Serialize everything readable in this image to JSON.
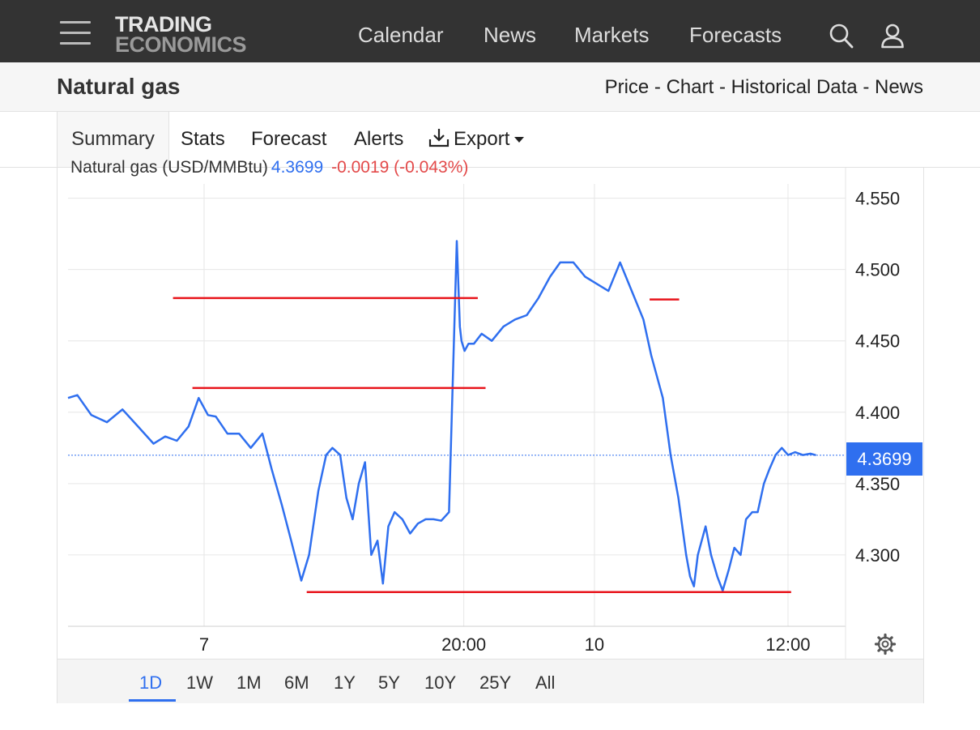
{
  "header": {
    "logo_line1": "TRADING",
    "logo_line2": "ECONOMICS",
    "nav": [
      "Calendar",
      "News",
      "Markets",
      "Forecasts"
    ],
    "icons": [
      "menu-icon",
      "search-icon",
      "user-icon"
    ]
  },
  "title_bar": {
    "title": "Natural gas",
    "links": [
      "Price",
      "Chart",
      "Historical Data",
      "News"
    ],
    "separator": " - "
  },
  "tabs": {
    "items": [
      "Summary",
      "Stats",
      "Forecast",
      "Alerts",
      "Export"
    ],
    "active": "Summary",
    "export_icon": "download-icon"
  },
  "legend": {
    "name": "Natural gas (USD/MMBtu)",
    "price": "4.3699",
    "change": "-0.0019 (-0.043%)"
  },
  "colors": {
    "accent": "#2f6fef",
    "negative": "#e34a4a",
    "trendline": "#e8141b",
    "topbar": "#333333"
  },
  "ranges": {
    "items": [
      "1D",
      "1W",
      "1M",
      "6M",
      "1Y",
      "5Y",
      "10Y",
      "25Y",
      "All"
    ],
    "active": "1D"
  },
  "chart_data": {
    "type": "line",
    "ylim": [
      4.25,
      4.56
    ],
    "y_ticks": [
      4.3,
      4.35,
      4.4,
      4.45,
      4.5,
      4.55
    ],
    "y_tick_labels": [
      "4.300",
      "4.350",
      "4.400",
      "4.450",
      "4.500",
      "4.550"
    ],
    "x_tick_labels": [
      "7",
      "20:00",
      "10",
      "12:00"
    ],
    "x_tick_positions": [
      0.175,
      0.509,
      0.677,
      0.926
    ],
    "grid": true,
    "last_value": 4.3699,
    "last_value_label": "4.3699",
    "series": [
      {
        "color": "#2f6fef",
        "x": [
          0.0,
          0.012,
          0.03,
          0.05,
          0.07,
          0.09,
          0.11,
          0.125,
          0.14,
          0.155,
          0.168,
          0.18,
          0.19,
          0.205,
          0.22,
          0.235,
          0.25,
          0.262,
          0.275,
          0.287,
          0.3,
          0.31,
          0.322,
          0.332,
          0.34,
          0.35,
          0.358,
          0.366,
          0.374,
          0.382,
          0.39,
          0.398,
          0.405,
          0.412,
          0.42,
          0.43,
          0.44,
          0.45,
          0.46,
          0.47,
          0.48,
          0.49,
          0.5,
          0.504,
          0.506,
          0.51,
          0.515,
          0.522,
          0.532,
          0.545,
          0.56,
          0.575,
          0.59,
          0.605,
          0.62,
          0.633,
          0.65,
          0.665,
          0.68,
          0.695,
          0.71,
          0.725,
          0.74,
          0.75,
          0.765,
          0.775,
          0.785,
          0.795,
          0.8,
          0.805,
          0.81,
          0.82,
          0.827,
          0.835,
          0.842,
          0.85,
          0.857,
          0.865,
          0.872,
          0.88,
          0.887,
          0.895,
          0.902,
          0.91,
          0.918,
          0.926,
          0.935,
          0.945,
          0.955,
          0.962
        ],
        "y": [
          4.41,
          4.412,
          4.398,
          4.393,
          4.402,
          4.39,
          4.378,
          4.383,
          4.38,
          4.39,
          4.41,
          4.398,
          4.397,
          4.385,
          4.385,
          4.375,
          4.385,
          4.36,
          4.335,
          4.31,
          4.282,
          4.3,
          4.345,
          4.37,
          4.375,
          4.37,
          4.34,
          4.325,
          4.35,
          4.365,
          4.3,
          4.31,
          4.28,
          4.32,
          4.33,
          4.325,
          4.315,
          4.322,
          4.325,
          4.325,
          4.324,
          4.33,
          4.52,
          4.46,
          4.45,
          4.443,
          4.448,
          4.448,
          4.455,
          4.45,
          4.46,
          4.465,
          4.468,
          4.48,
          4.495,
          4.505,
          4.505,
          4.495,
          4.49,
          4.485,
          4.505,
          4.485,
          4.465,
          4.44,
          4.41,
          4.37,
          4.34,
          4.3,
          4.285,
          4.278,
          4.3,
          4.32,
          4.3,
          4.285,
          4.275,
          4.29,
          4.305,
          4.3,
          4.325,
          4.33,
          4.33,
          4.35,
          4.36,
          4.37,
          4.375,
          4.37,
          4.372,
          4.37,
          4.371,
          4.3699
        ]
      }
    ],
    "trend_lines": [
      {
        "x1": 0.135,
        "x2": 0.527,
        "y": 4.48
      },
      {
        "x1": 0.16,
        "x2": 0.537,
        "y": 4.417
      },
      {
        "x1": 0.307,
        "x2": 0.93,
        "y": 4.274
      },
      {
        "x1": 0.748,
        "x2": 0.786,
        "y": 4.479
      }
    ]
  }
}
